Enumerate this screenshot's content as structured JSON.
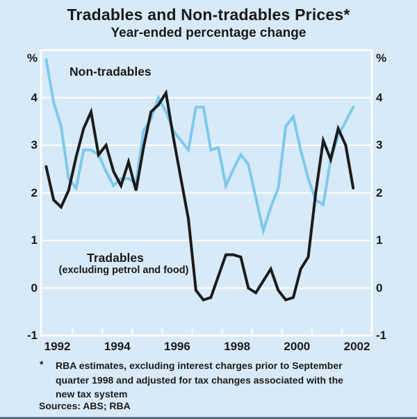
{
  "title": "Tradables and Non-tradables Prices*",
  "subtitle": "Year-ended percentage change",
  "y_axis": {
    "unit_label_left": "%",
    "unit_label_right": "%",
    "ticks": [
      4,
      3,
      2,
      1,
      0,
      -1
    ]
  },
  "x_axis": {
    "year_labels": [
      1992,
      1994,
      1996,
      1998,
      2000,
      2002
    ],
    "tick_years": [
      1993,
      1994,
      1995,
      1996,
      1997,
      1998,
      1999,
      2000,
      2001,
      2002
    ]
  },
  "series_labels": {
    "non_tradables": "Non-tradables",
    "tradables_line1": "Tradables",
    "tradables_line2": "(excluding petrol and food)"
  },
  "footnote": {
    "marker": "*",
    "lines": [
      "RBA estimates, excluding interest charges prior to September",
      "quarter 1998 and adjusted for tax changes associated with the",
      "new tax system"
    ],
    "sources": "Sources: ABS; RBA"
  },
  "colors": {
    "background": "#d8eaf7",
    "grid": "#ffffff",
    "text": "#1a1a1a",
    "non_tradables_line": "#7ec9eb",
    "tradables_line": "#1c1c1c"
  },
  "chart_data": {
    "type": "line",
    "title": "Tradables and Non-tradables Prices*",
    "subtitle": "Year-ended percentage change",
    "ylabel": "%",
    "ylim": [
      -1,
      5
    ],
    "xlim_years": [
      1992,
      2003
    ],
    "gridlines_y": [
      0,
      1,
      2,
      3,
      4
    ],
    "grid": "on",
    "legend_position": "in-plot text labels",
    "frequency": "quarterly, year-ended percentage change",
    "quarters": [
      "1992Q1",
      "1992Q2",
      "1992Q3",
      "1992Q4",
      "1993Q1",
      "1993Q2",
      "1993Q3",
      "1993Q4",
      "1994Q1",
      "1994Q2",
      "1994Q3",
      "1994Q4",
      "1995Q1",
      "1995Q2",
      "1995Q3",
      "1995Q4",
      "1996Q1",
      "1996Q2",
      "1996Q3",
      "1996Q4",
      "1997Q1",
      "1997Q2",
      "1997Q3",
      "1997Q4",
      "1998Q1",
      "1998Q2",
      "1998Q3",
      "1998Q4",
      "1999Q1",
      "1999Q2",
      "1999Q3",
      "1999Q4",
      "2000Q1",
      "2000Q2",
      "2000Q3",
      "2000Q4",
      "2001Q1",
      "2001Q2",
      "2001Q3",
      "2001Q4",
      "2002Q1",
      "2002Q2"
    ],
    "series": [
      {
        "name": "Non-tradables",
        "color": "#7ec9eb",
        "values": [
          4.8,
          3.9,
          3.4,
          2.3,
          2.1,
          2.9,
          2.9,
          2.8,
          2.45,
          2.15,
          2.3,
          2.3,
          2.2,
          3.3,
          3.55,
          4.0,
          3.7,
          3.3,
          3.1,
          2.9,
          3.8,
          3.8,
          2.9,
          2.95,
          2.15,
          2.5,
          2.8,
          2.6,
          1.9,
          1.2,
          1.7,
          2.1,
          3.4,
          3.6,
          2.9,
          2.3,
          1.85,
          1.75,
          2.7,
          3.2,
          3.5,
          3.8
        ]
      },
      {
        "name": "Tradables (excluding petrol and food)",
        "color": "#1c1c1c",
        "values": [
          2.55,
          1.85,
          1.7,
          2.05,
          2.75,
          3.35,
          3.7,
          2.8,
          3.0,
          2.45,
          2.15,
          2.65,
          2.05,
          2.95,
          3.7,
          3.85,
          4.1,
          3.15,
          2.3,
          1.45,
          -0.05,
          -0.25,
          -0.2,
          0.25,
          0.7,
          0.7,
          0.65,
          0.0,
          -0.1,
          0.15,
          0.4,
          -0.05,
          -0.25,
          -0.2,
          0.4,
          0.65,
          2.0,
          3.1,
          2.7,
          3.35,
          3.0,
          2.1
        ]
      }
    ]
  }
}
